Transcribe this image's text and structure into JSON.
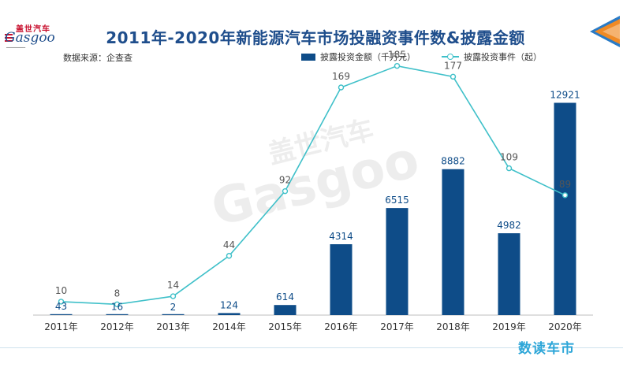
{
  "logo": {
    "cn": "盖世汽车",
    "en": "Gasgoo"
  },
  "title": "2011年-2020年新能源汽车市场投融资事件数&披露金额",
  "source": "数据来源：企查查",
  "brand": "数读车市",
  "watermark": {
    "cn": "盖世汽车",
    "en": "Gasgoo"
  },
  "colors": {
    "bar": "#0e4c88",
    "line": "#3fc0c9",
    "title": "#1f4e8c",
    "brand": "#2da6d8",
    "arrow_orange": "#f08a24",
    "arrow_blue": "#2a7bc6"
  },
  "chart_data": {
    "type": "bar",
    "categories": [
      "2011年",
      "2012年",
      "2013年",
      "2014年",
      "2015年",
      "2016年",
      "2017年",
      "2018年",
      "2019年",
      "2020年"
    ],
    "series": [
      {
        "name": "披露投资金额（千万元）",
        "type": "bar",
        "axis": "left",
        "values": [
          43,
          16,
          2,
          124,
          614,
          4314,
          6515,
          8882,
          4982,
          12921
        ]
      },
      {
        "name": "披露投资事件（起）",
        "type": "line",
        "axis": "right",
        "values": [
          10,
          8,
          14,
          44,
          92,
          169,
          185,
          177,
          109,
          89
        ]
      }
    ],
    "ylim": [
      0,
      14000
    ],
    "y2lim": [
      0,
      200
    ],
    "legend_position": "top-right",
    "grid": false
  }
}
